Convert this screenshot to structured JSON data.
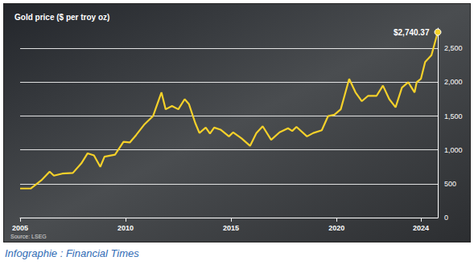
{
  "chart_data": {
    "type": "line",
    "title": "Gold price ($ per troy oz)",
    "annotations": [
      "$2,740.37"
    ],
    "source": "Source: LSEG",
    "caption": "Infographie : Financial Times",
    "color": "#f5d12a",
    "marker": "end",
    "grid": true,
    "x": [
      2005.0,
      2005.5,
      2006.0,
      2006.4,
      2006.6,
      2007.0,
      2007.5,
      2007.9,
      2008.2,
      2008.5,
      2008.8,
      2009.0,
      2009.5,
      2009.9,
      2010.2,
      2010.5,
      2010.9,
      2011.3,
      2011.7,
      2011.9,
      2012.2,
      2012.5,
      2012.8,
      2013.0,
      2013.3,
      2013.5,
      2013.8,
      2014.0,
      2014.2,
      2014.5,
      2014.9,
      2015.1,
      2015.5,
      2015.9,
      2016.2,
      2016.5,
      2016.9,
      2017.3,
      2017.7,
      2017.9,
      2018.1,
      2018.6,
      2018.9,
      2019.3,
      2019.6,
      2019.9,
      2020.2,
      2020.6,
      2020.9,
      2021.2,
      2021.5,
      2021.9,
      2022.2,
      2022.5,
      2022.8,
      2023.1,
      2023.4,
      2023.7,
      2023.8,
      2024.0,
      2024.2,
      2024.5,
      2024.8
    ],
    "values": [
      430,
      430,
      550,
      680,
      620,
      650,
      660,
      800,
      950,
      920,
      750,
      900,
      930,
      1120,
      1110,
      1220,
      1380,
      1500,
      1850,
      1600,
      1650,
      1600,
      1750,
      1680,
      1400,
      1250,
      1330,
      1240,
      1330,
      1300,
      1200,
      1260,
      1170,
      1060,
      1250,
      1350,
      1150,
      1260,
      1320,
      1280,
      1340,
      1200,
      1250,
      1290,
      1500,
      1520,
      1600,
      2050,
      1850,
      1720,
      1800,
      1800,
      1950,
      1750,
      1630,
      1920,
      2000,
      1850,
      2000,
      2050,
      2300,
      2400,
      2740.37
    ],
    "xlim": [
      2005,
      2024.8
    ],
    "xticks": [
      2005,
      2010,
      2015,
      2020,
      2024
    ],
    "ylim": [
      0,
      2800
    ],
    "yticks": [
      0,
      500,
      {
        "value": 1000,
        "label": "1,000"
      },
      {
        "value": 1500,
        "label": "1,500"
      },
      {
        "value": 2000,
        "label": "2,000"
      },
      {
        "value": 2500,
        "label": "2,500"
      }
    ]
  }
}
